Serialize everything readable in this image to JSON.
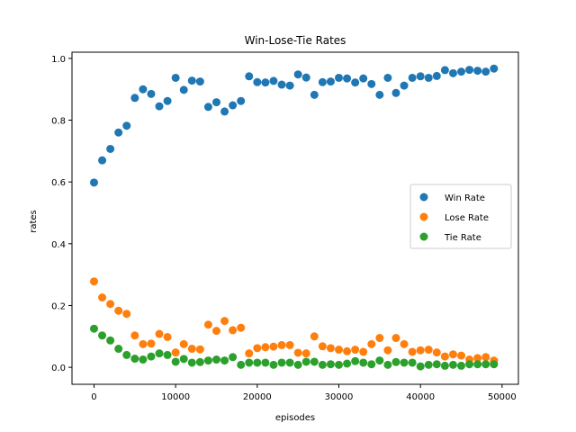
{
  "chart_data": {
    "type": "scatter",
    "title": "Win-Lose-Tie Rates",
    "xlabel": "episodes",
    "ylabel": "rates",
    "xlim": [
      -2700,
      52000
    ],
    "ylim": [
      -0.055,
      1.02
    ],
    "xticks": [
      0,
      10000,
      20000,
      30000,
      40000,
      50000
    ],
    "xtick_labels": [
      "0",
      "10000",
      "20000",
      "30000",
      "40000",
      "50000"
    ],
    "yticks": [
      0.0,
      0.2,
      0.4,
      0.6,
      0.8,
      1.0
    ],
    "ytick_labels": [
      "0.0",
      "0.2",
      "0.4",
      "0.6",
      "0.8",
      "1.0"
    ],
    "grid": false,
    "legend_position": "center-right",
    "x": [
      0,
      1000,
      2000,
      3000,
      4000,
      5000,
      6000,
      7000,
      8000,
      9000,
      10000,
      11000,
      12000,
      13000,
      14000,
      15000,
      16000,
      17000,
      18000,
      19000,
      20000,
      21000,
      22000,
      23000,
      24000,
      25000,
      26000,
      27000,
      28000,
      29000,
      30000,
      31000,
      32000,
      33000,
      34000,
      35000,
      36000,
      37000,
      38000,
      39000,
      40000,
      41000,
      42000,
      43000,
      44000,
      45000,
      46000,
      47000,
      48000,
      49000
    ],
    "series": [
      {
        "name": "Win Rate",
        "color": "#1f77b4",
        "values": [
          0.598,
          0.67,
          0.707,
          0.76,
          0.782,
          0.872,
          0.9,
          0.885,
          0.845,
          0.862,
          0.937,
          0.898,
          0.928,
          0.925,
          0.843,
          0.858,
          0.828,
          0.848,
          0.862,
          0.942,
          0.923,
          0.922,
          0.927,
          0.915,
          0.912,
          0.948,
          0.938,
          0.882,
          0.923,
          0.925,
          0.937,
          0.935,
          0.922,
          0.935,
          0.917,
          0.882,
          0.937,
          0.888,
          0.912,
          0.937,
          0.942,
          0.937,
          0.943,
          0.962,
          0.952,
          0.957,
          0.963,
          0.96,
          0.957,
          0.967
        ]
      },
      {
        "name": "Lose Rate",
        "color": "#ff7f0e",
        "values": [
          0.278,
          0.226,
          0.205,
          0.183,
          0.173,
          0.103,
          0.075,
          0.077,
          0.108,
          0.098,
          0.048,
          0.075,
          0.06,
          0.058,
          0.138,
          0.118,
          0.15,
          0.12,
          0.128,
          0.045,
          0.062,
          0.065,
          0.067,
          0.072,
          0.072,
          0.047,
          0.045,
          0.1,
          0.068,
          0.062,
          0.057,
          0.052,
          0.057,
          0.05,
          0.075,
          0.095,
          0.055,
          0.095,
          0.075,
          0.05,
          0.055,
          0.057,
          0.048,
          0.035,
          0.042,
          0.038,
          0.025,
          0.03,
          0.033,
          0.022
        ]
      },
      {
        "name": "Tie Rate",
        "color": "#2ca02c",
        "values": [
          0.125,
          0.103,
          0.087,
          0.06,
          0.04,
          0.028,
          0.025,
          0.035,
          0.045,
          0.04,
          0.018,
          0.027,
          0.015,
          0.017,
          0.022,
          0.025,
          0.022,
          0.033,
          0.008,
          0.015,
          0.015,
          0.015,
          0.008,
          0.015,
          0.015,
          0.008,
          0.018,
          0.018,
          0.008,
          0.01,
          0.008,
          0.012,
          0.02,
          0.015,
          0.01,
          0.022,
          0.008,
          0.017,
          0.015,
          0.015,
          0.003,
          0.008,
          0.01,
          0.005,
          0.008,
          0.005,
          0.01,
          0.01,
          0.01,
          0.01
        ]
      }
    ]
  }
}
